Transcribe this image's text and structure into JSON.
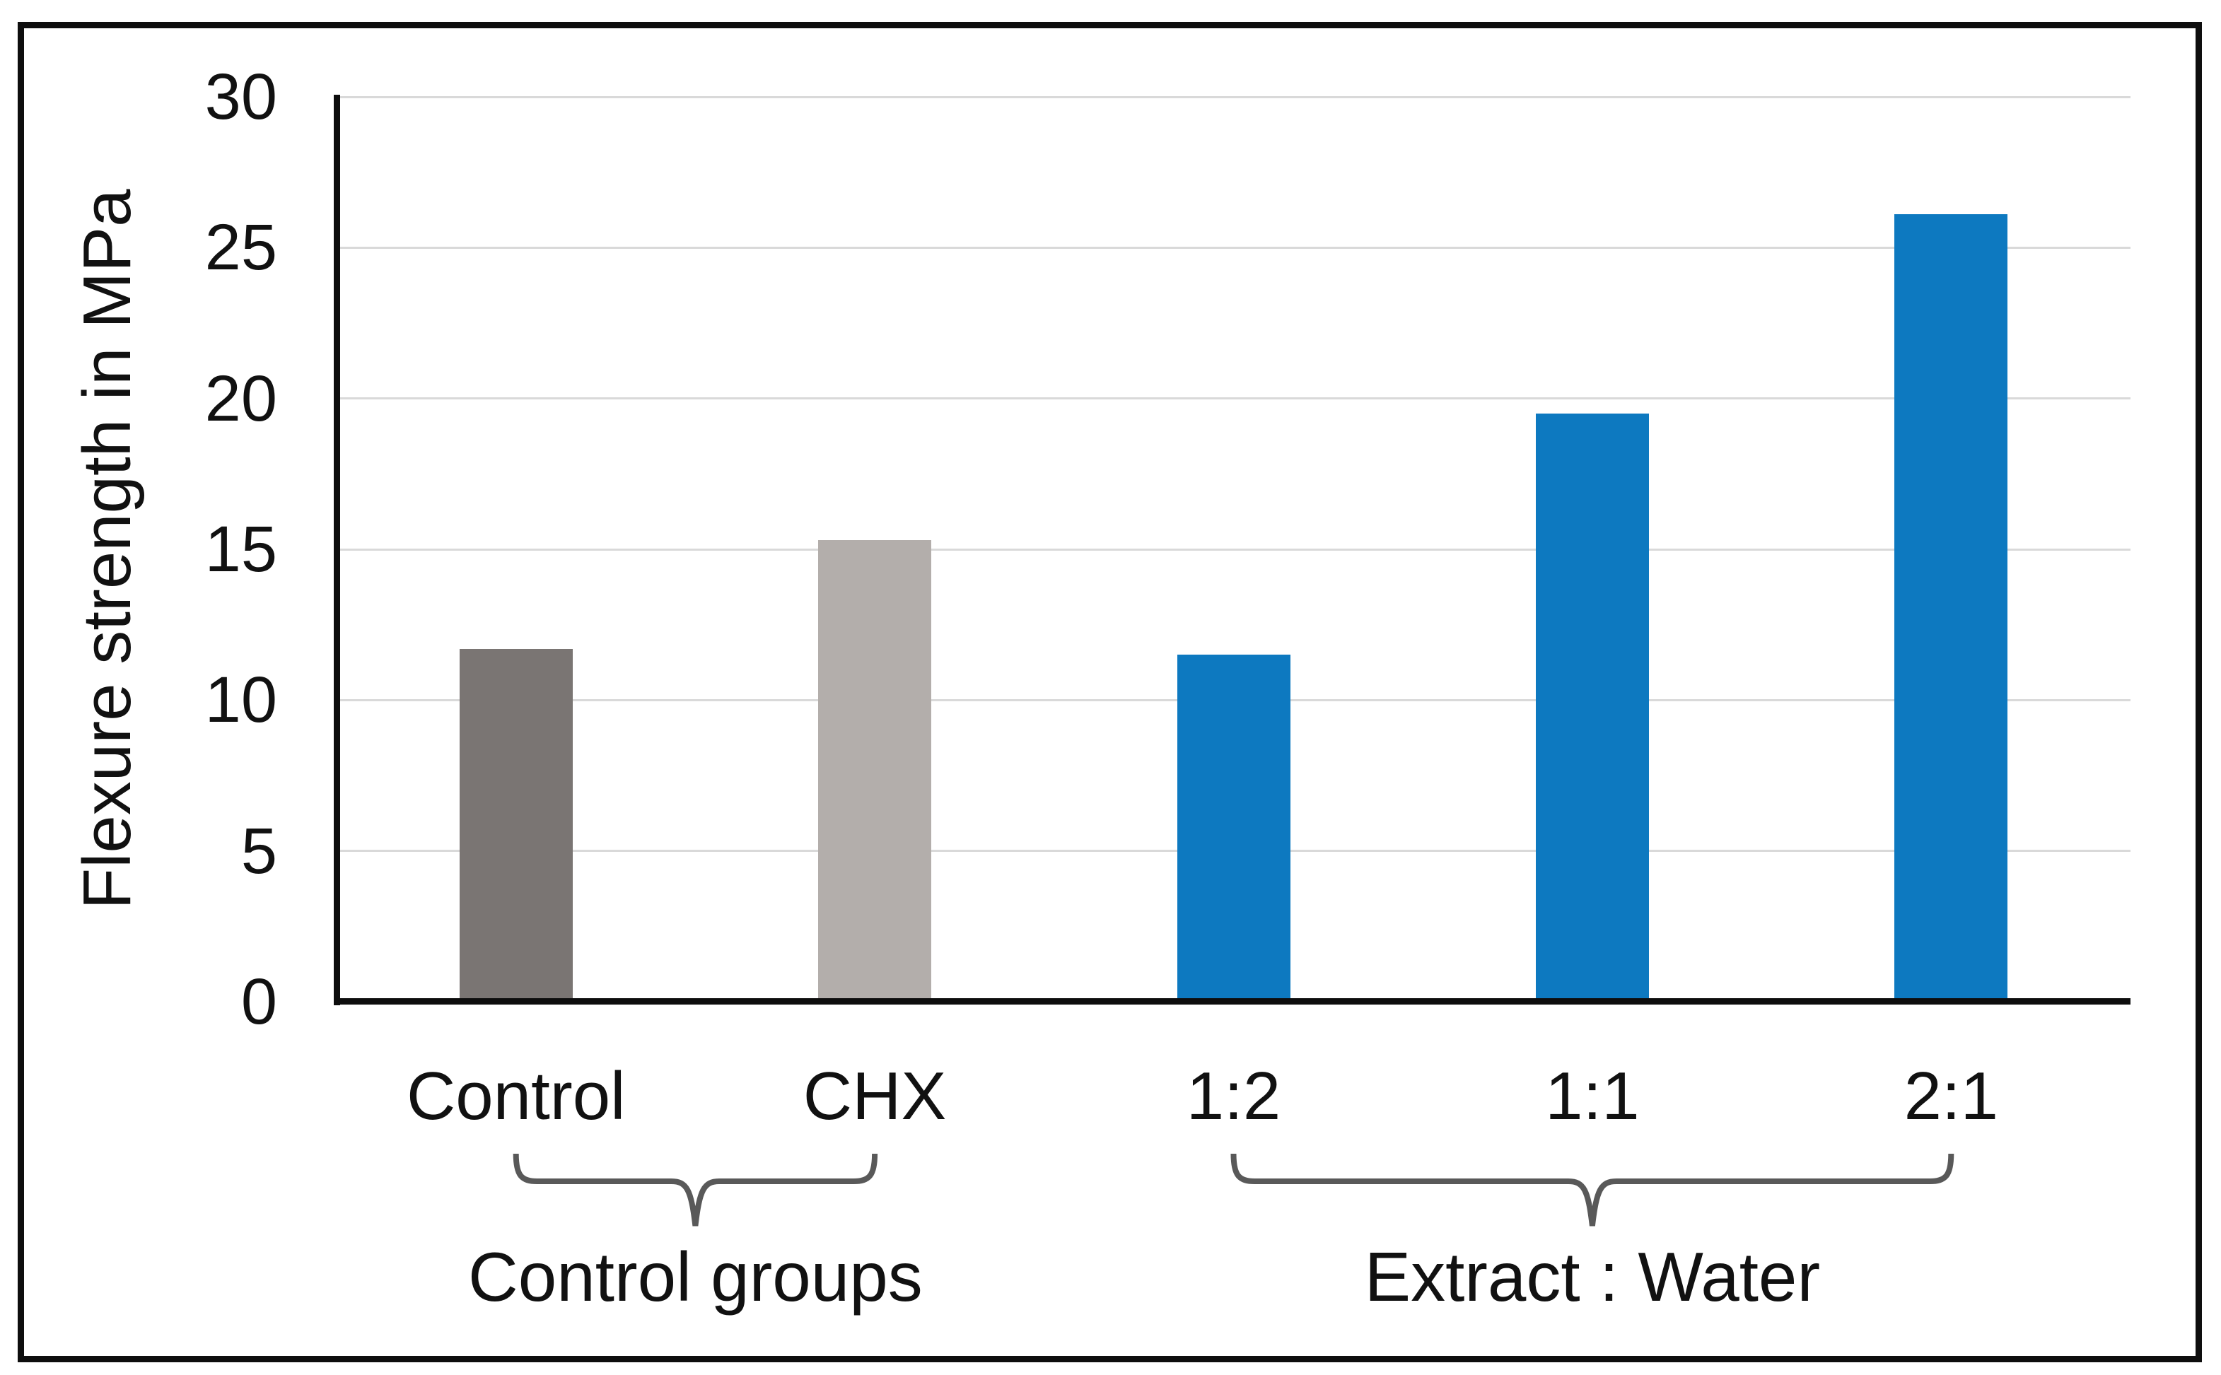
{
  "chart_data": {
    "type": "bar",
    "title": "",
    "ylabel": "Flexure strength in MPa",
    "xlabel": "",
    "ylim": [
      0,
      30
    ],
    "ytick_interval": 5,
    "yticks": [
      "0",
      "5",
      "10",
      "15",
      "20",
      "25",
      "30"
    ],
    "categories": [
      "Control",
      "CHX",
      "1:2",
      "1:1",
      "2:1"
    ],
    "values": [
      11.7,
      15.3,
      11.5,
      19.5,
      26.1
    ],
    "bar_colors": [
      "#7a7573",
      "#b3aeab",
      "#0d79c0",
      "#0d79c0",
      "#0d79c0"
    ],
    "groups": [
      {
        "label": "Control groups",
        "from": 0,
        "to": 1
      },
      {
        "label": "Extract : Water",
        "from": 2,
        "to": 4
      }
    ],
    "grid": true,
    "legend_position": "none"
  },
  "colors": {
    "background": "#ffffff",
    "frame": "#0e0e0e",
    "axis": "#0d0d0d",
    "gridline": "#d9d9d9",
    "bracket": "#595959",
    "text": "#111111",
    "bar_dark_gray": "#7a7573",
    "bar_light_gray": "#b3aeab",
    "bar_blue": "#0d79c0"
  }
}
